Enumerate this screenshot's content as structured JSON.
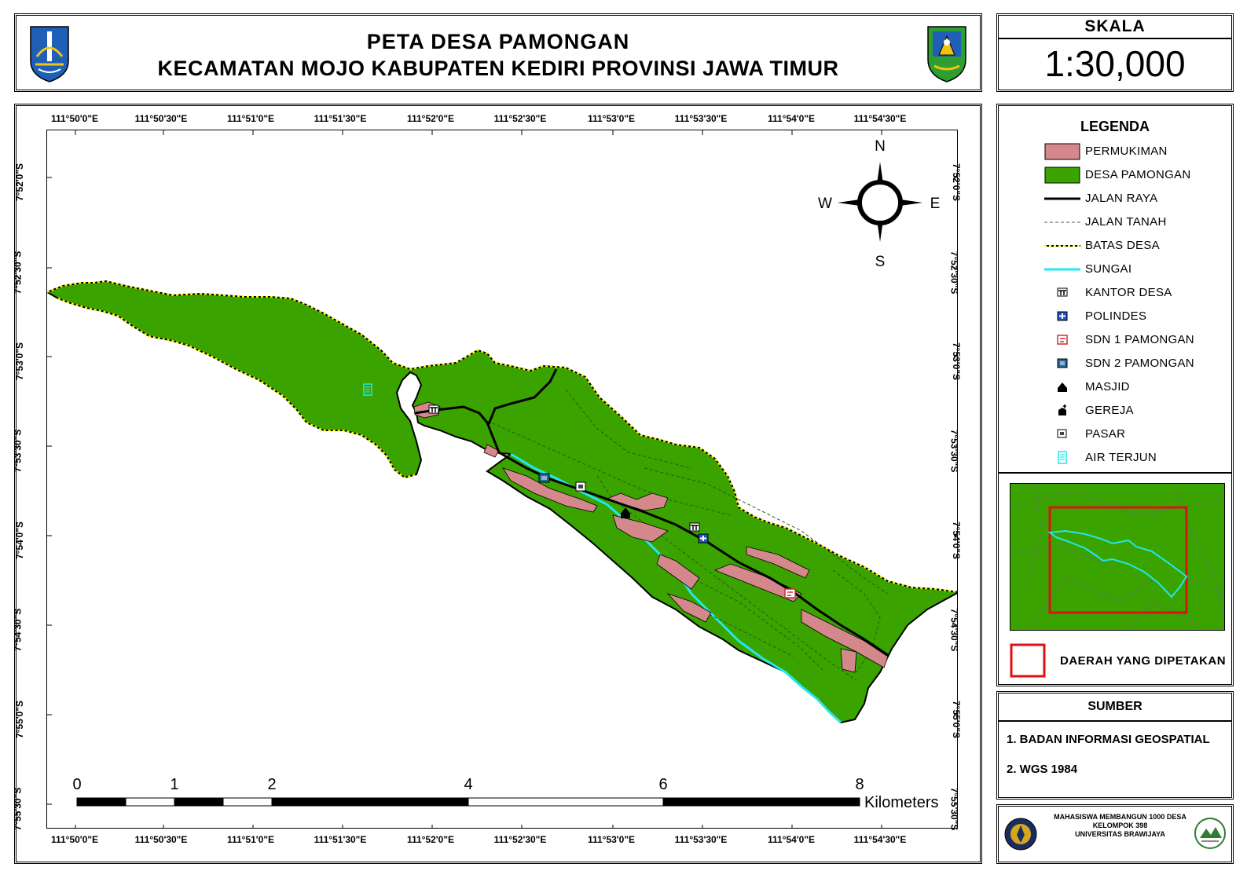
{
  "title": {
    "line1": "PETA DESA PAMONGAN",
    "line2": "KECAMATAN MOJO KABUPATEN KEDIRI PROVINSI JAWA TIMUR"
  },
  "scale": {
    "header": "SKALA",
    "value": "1:30,000"
  },
  "graticule": {
    "longitudes": [
      "111°50'0\"E",
      "111°50'30\"E",
      "111°51'0\"E",
      "111°51'30\"E",
      "111°52'0\"E",
      "111°52'30\"E",
      "111°53'0\"E",
      "111°53'30\"E",
      "111°54'0\"E",
      "111°54'30\"E"
    ],
    "latitudes": [
      "7°52'0\"S",
      "7°52'30\"S",
      "7°53'0\"S",
      "7°53'30\"S",
      "7°54'0\"S",
      "7°54'30\"S",
      "7°55'0\"S",
      "7°55'30\"S"
    ]
  },
  "north_arrow": {
    "n": "N",
    "s": "S",
    "e": "E",
    "w": "W"
  },
  "scale_bar": {
    "labels": [
      "0",
      "1",
      "2",
      "4",
      "6",
      "8"
    ],
    "unit": "Kilometers"
  },
  "legend": {
    "title": "LEGENDA",
    "items": [
      {
        "label": "PERMUKIMAN",
        "symbol": "fill",
        "color": "#d4888c"
      },
      {
        "label": "DESA PAMONGAN",
        "symbol": "fill",
        "color": "#3aa300"
      },
      {
        "label": "JALAN RAYA",
        "symbol": "line",
        "color": "#000000"
      },
      {
        "label": "JALAN TANAH",
        "symbol": "dash",
        "color": "#555555"
      },
      {
        "label": "BATAS DESA",
        "symbol": "boundary",
        "color": "#ffff00"
      },
      {
        "label": "SUNGAI",
        "symbol": "line",
        "color": "#22e6f0"
      },
      {
        "label": "KANTOR DESA",
        "symbol": "kantor-icon",
        "color": "#000000"
      },
      {
        "label": "POLINDES",
        "symbol": "polindes-icon",
        "color": "#1a56c8"
      },
      {
        "label": "SDN 1 PAMONGAN",
        "symbol": "sdn1-icon",
        "color": "#c83030"
      },
      {
        "label": "SDN 2 PAMONGAN",
        "symbol": "sdn2-icon",
        "color": "#1a6e9a"
      },
      {
        "label": "MASJID",
        "symbol": "masjid-icon",
        "color": "#000000"
      },
      {
        "label": "GEREJA",
        "symbol": "gereja-icon",
        "color": "#000000"
      },
      {
        "label": "PASAR",
        "symbol": "pasar-icon",
        "color": "#444444"
      },
      {
        "label": "AIR TERJUN",
        "symbol": "waterfall-icon",
        "color": "#22e6f0"
      }
    ],
    "inset_label": "DAERAH YANG DIPETAKAN"
  },
  "source": {
    "header": "SUMBER",
    "items": [
      "1. BADAN INFORMASI GEOSPATIAL",
      "2. WGS 1984"
    ]
  },
  "credit": {
    "line1": "MAHASISWA MEMBANGUN 1000 DESA",
    "line2": "KELOMPOK 398",
    "line3": "UNIVERSITAS BRAWIJAYA"
  },
  "colors": {
    "village": "#3aa300",
    "settlement": "#d4888c",
    "boundary": "#ffff00",
    "river": "#22e6f0",
    "inset_frame": "#e01010"
  }
}
